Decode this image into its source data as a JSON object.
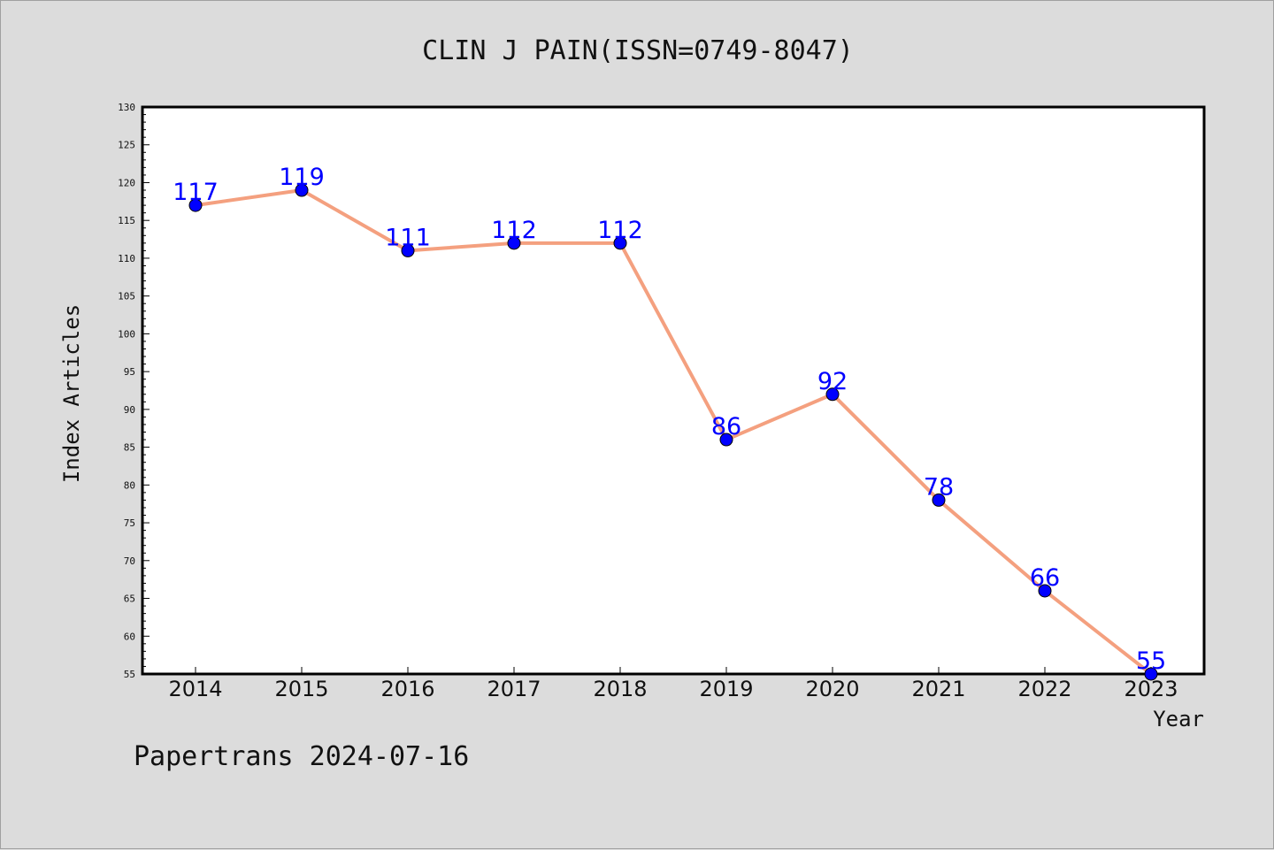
{
  "chart_data": {
    "type": "line",
    "title": "CLIN J PAIN(ISSN=0749-8047)",
    "xlabel": "Year",
    "ylabel": "Index Articles",
    "footer": "Papertrans 2024-07-16",
    "categories": [
      "2014",
      "2015",
      "2016",
      "2017",
      "2018",
      "2019",
      "2020",
      "2021",
      "2022",
      "2023"
    ],
    "series": [
      {
        "values": [
          117,
          119,
          111,
          112,
          112,
          86,
          92,
          78,
          66,
          55
        ]
      }
    ],
    "ylim": [
      55,
      130
    ],
    "yticks": [
      "55",
      "60",
      "65",
      "70",
      "75",
      "80",
      "85",
      "90",
      "95",
      "100",
      "105",
      "110",
      "115",
      "120",
      "125",
      "130"
    ],
    "grid": false,
    "colors": {
      "line": "#f4a07f",
      "marker": "#0000ff",
      "label": "#0000ff",
      "background": "#dcdcdc",
      "plot": "#ffffff"
    }
  }
}
